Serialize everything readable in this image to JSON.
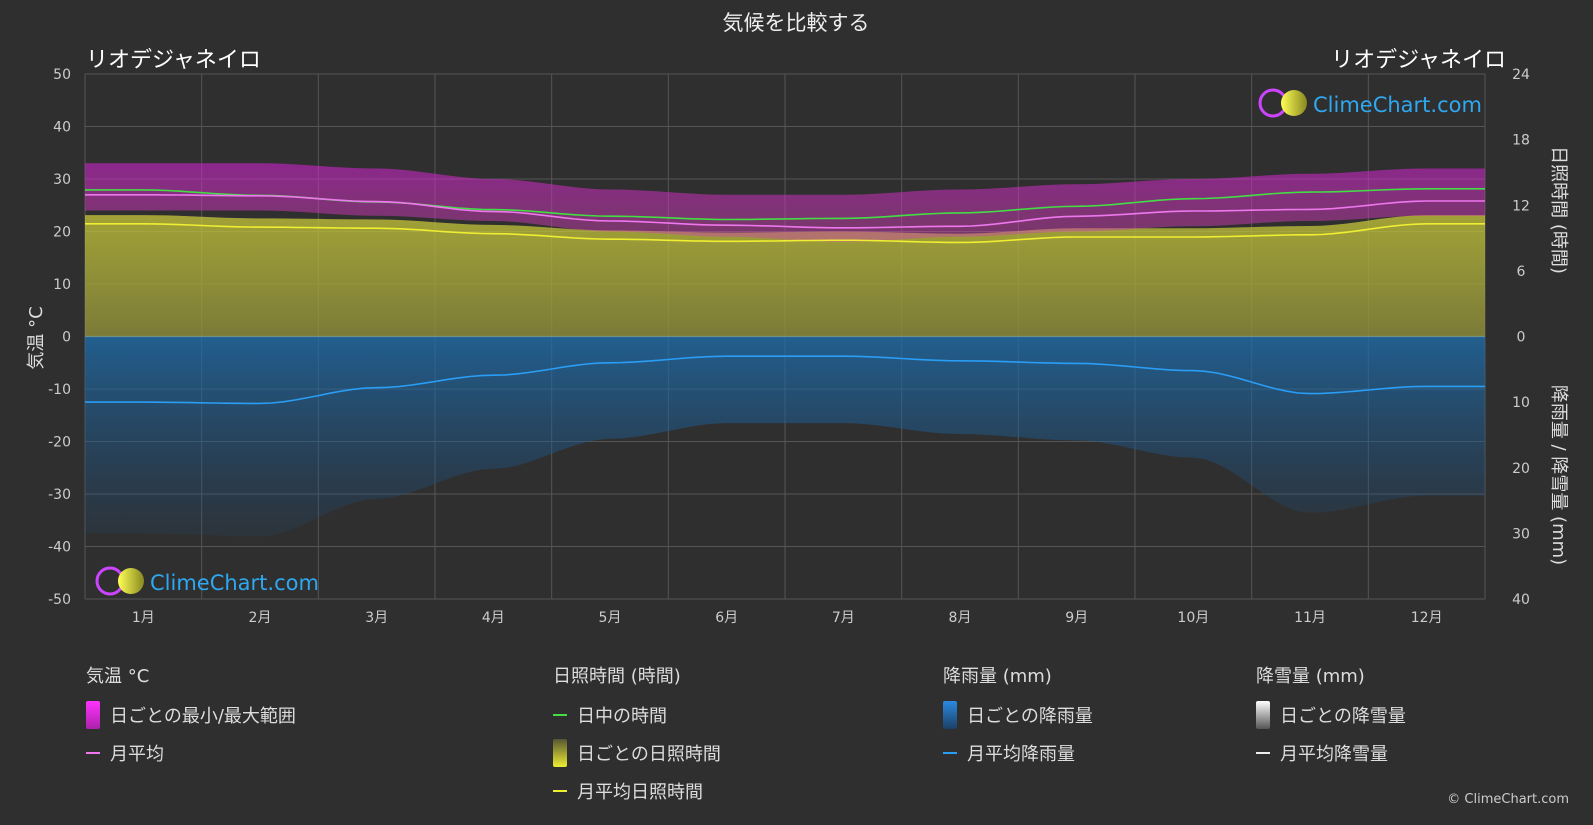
{
  "title": "気候を比較する",
  "location_left": "リオデジャネイロ",
  "location_right": "リオデジャネイロ",
  "logo_text": "ClimeChart.com",
  "copyright": "© ClimeChart.com",
  "chart_data": {
    "type": "line",
    "x_months": [
      "1月",
      "2月",
      "3月",
      "4月",
      "5月",
      "6月",
      "7月",
      "8月",
      "9月",
      "10月",
      "11月",
      "12月"
    ],
    "y_left": {
      "label": "気温 °C",
      "range": [
        -50,
        50
      ],
      "ticks": [
        50,
        40,
        30,
        20,
        10,
        0,
        -10,
        -20,
        -30,
        -40,
        -50
      ]
    },
    "y_right_top": {
      "label": "日照時間 (時間)",
      "range": [
        0,
        24
      ],
      "ticks": [
        24,
        18,
        12,
        6,
        0
      ]
    },
    "y_right_bottom": {
      "label": "降雨量 / 降雪量 (mm)",
      "range": [
        0,
        40
      ],
      "ticks": [
        0,
        10,
        20,
        30,
        40
      ]
    },
    "grid": true,
    "series": [
      {
        "name": "日中の時間",
        "axis": "sunshine_hours",
        "color": "#44dd44",
        "values": [
          13.4,
          12.9,
          12.3,
          11.6,
          11.0,
          10.7,
          10.8,
          11.3,
          11.9,
          12.6,
          13.2,
          13.5
        ]
      },
      {
        "name": "月平均日照時間",
        "axis": "sunshine_hours",
        "color": "#eeee33",
        "values": [
          10.3,
          10.0,
          9.9,
          9.4,
          8.9,
          8.7,
          8.8,
          8.6,
          9.1,
          9.1,
          9.3,
          10.3
        ]
      },
      {
        "name": "月平均",
        "axis": "temperature",
        "color": "#ee77ee",
        "values": [
          27.0,
          26.8,
          25.7,
          23.8,
          22.0,
          21.2,
          20.7,
          21.0,
          22.9,
          23.9,
          24.2,
          25.8
        ]
      },
      {
        "name": "月平均降雨量",
        "axis": "precipitation_mm",
        "color": "#2a9df4",
        "values": [
          10.0,
          10.2,
          7.8,
          5.9,
          4.0,
          3.0,
          3.0,
          3.7,
          4.1,
          5.2,
          8.7,
          7.6
        ]
      }
    ],
    "temperature_range": {
      "name": "日ごとの最小/最大範囲",
      "min": [
        24,
        24,
        23,
        22,
        20,
        19,
        18,
        19,
        20,
        21,
        22,
        23
      ],
      "max": [
        33,
        33,
        32,
        30,
        28,
        27,
        27,
        28,
        29,
        30,
        31,
        32
      ]
    }
  },
  "legend": {
    "temperature": {
      "heading": "気温 °C",
      "items": [
        {
          "label": "日ごとの最小/最大範囲",
          "kind": "box",
          "color": "#dd22dd"
        },
        {
          "label": "月平均",
          "kind": "line",
          "color": "#ee77ee"
        }
      ]
    },
    "sunshine": {
      "heading": "日照時間 (時間)",
      "items": [
        {
          "label": "日中の時間",
          "kind": "line",
          "color": "#44dd44"
        },
        {
          "label": "日ごとの日照時間",
          "kind": "box",
          "color": "#cccc33"
        },
        {
          "label": "月平均日照時間",
          "kind": "line",
          "color": "#eeee33"
        }
      ]
    },
    "rain": {
      "heading": "降雨量 (mm)",
      "items": [
        {
          "label": "日ごとの降雨量",
          "kind": "box",
          "color": "#2a8ae0"
        },
        {
          "label": "月平均降雨量",
          "kind": "line",
          "color": "#2a9df4"
        }
      ]
    },
    "snow": {
      "heading": "降雪量 (mm)",
      "items": [
        {
          "label": "日ごとの降雪量",
          "kind": "box",
          "color": "#cccccc"
        },
        {
          "label": "月平均降雪量",
          "kind": "line",
          "color": "#eeeeee"
        }
      ]
    }
  }
}
